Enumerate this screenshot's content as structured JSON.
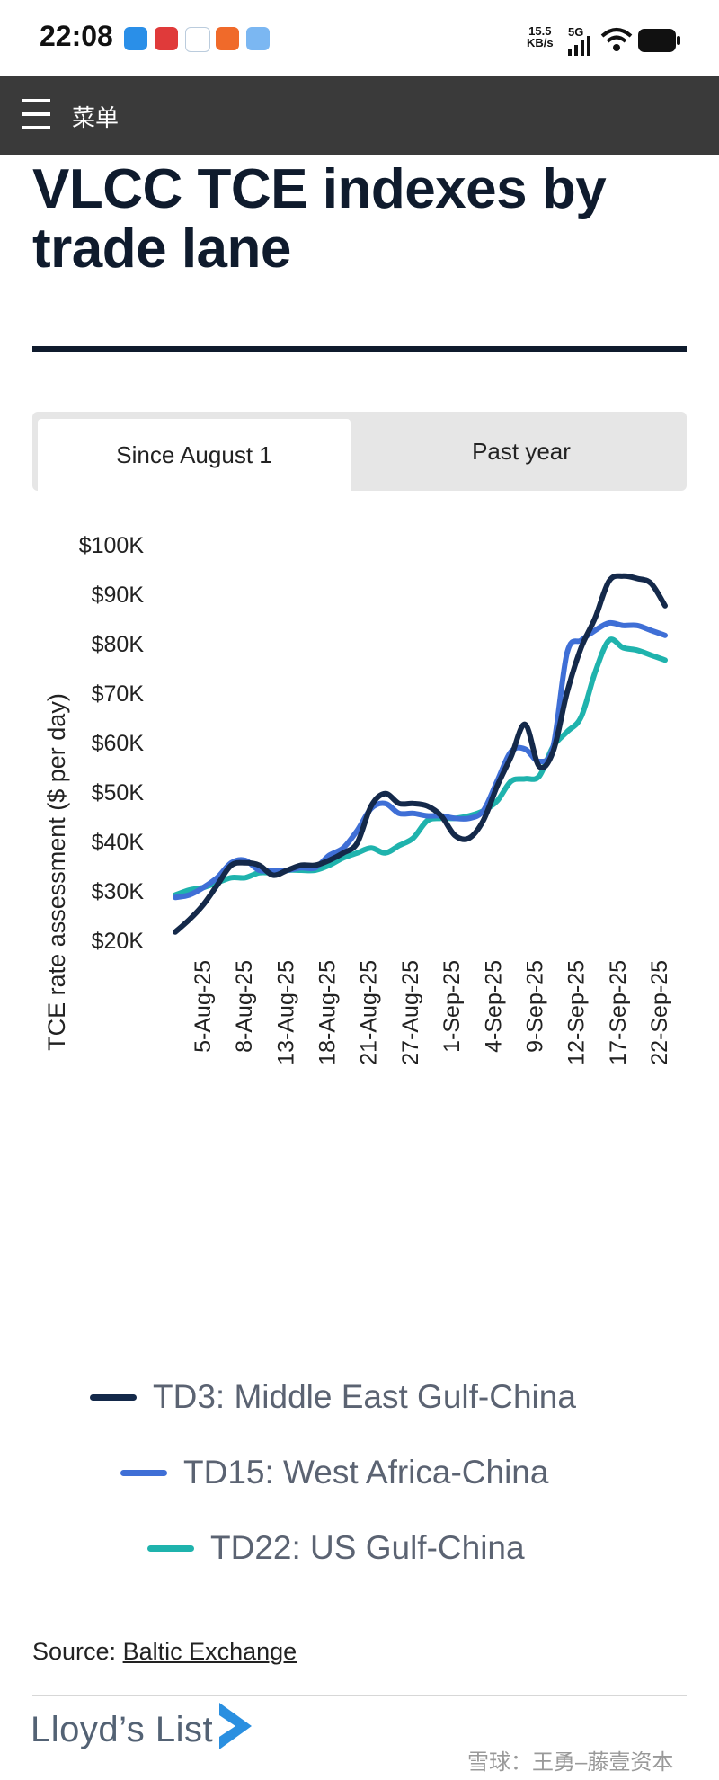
{
  "status_bar": {
    "time": "22:08",
    "speed": "15.5",
    "speed_unit": "KB/s",
    "network": "5G"
  },
  "header": {
    "menu_label": "菜单"
  },
  "article": {
    "title": "VLCC TCE indexes by trade lane"
  },
  "tabs": [
    {
      "label": "Since August 1",
      "active": true
    },
    {
      "label": "Past year",
      "active": false
    }
  ],
  "chart_data": {
    "type": "line",
    "title": "VLCC TCE indexes by trade lane",
    "ylabel": "TCE rate assessment ($ per day)",
    "xlabel": "",
    "ylim": [
      20000,
      100000
    ],
    "y_ticks": [
      {
        "value": 100000,
        "label": "$100K"
      },
      {
        "value": 90000,
        "label": "$90K"
      },
      {
        "value": 80000,
        "label": "$80K"
      },
      {
        "value": 70000,
        "label": "$70K"
      },
      {
        "value": 60000,
        "label": "$60K"
      },
      {
        "value": 50000,
        "label": "$50K"
      },
      {
        "value": 40000,
        "label": "$40K"
      },
      {
        "value": 30000,
        "label": "$30K"
      },
      {
        "value": 20000,
        "label": "$20K"
      }
    ],
    "x_tick_labels": [
      "5-Aug-25",
      "8-Aug-25",
      "13-Aug-25",
      "18-Aug-25",
      "21-Aug-25",
      "27-Aug-25",
      "1-Sep-25",
      "4-Sep-25",
      "9-Sep-25",
      "12-Sep-25",
      "17-Sep-25",
      "22-Sep-25"
    ],
    "grid": false,
    "legend_position": "bottom",
    "series": [
      {
        "name": "TD3: Middle East Gulf-China",
        "color": "#14294a",
        "values": [
          21500,
          24000,
          27000,
          31000,
          35000,
          35500,
          35000,
          33000,
          34000,
          35000,
          35000,
          36000,
          37500,
          39500,
          47000,
          49500,
          47500,
          47500,
          47000,
          45000,
          41000,
          40500,
          44000,
          51000,
          57000,
          63500,
          55000,
          58000,
          70000,
          79000,
          85000,
          92500,
          93500,
          93000,
          92000,
          87500
        ]
      },
      {
        "name": "TD15: West Africa-China",
        "color": "#3f6fd6",
        "values": [
          28500,
          29000,
          30500,
          32500,
          35500,
          36000,
          34000,
          34000,
          34000,
          34500,
          34500,
          37000,
          38500,
          42000,
          46500,
          47500,
          45500,
          45500,
          45000,
          45000,
          44500,
          44500,
          46000,
          52000,
          58000,
          58500,
          56000,
          59000,
          78000,
          80500,
          82500,
          84000,
          83500,
          83500,
          82500,
          81500
        ]
      },
      {
        "name": "TD22: US Gulf-China",
        "color": "#1fb3ad",
        "values": [
          29000,
          30000,
          30500,
          31500,
          32500,
          32500,
          33500,
          33500,
          34000,
          34000,
          34000,
          35000,
          36500,
          37500,
          38500,
          37500,
          39000,
          40500,
          44000,
          44500,
          44500,
          45000,
          46000,
          48000,
          52000,
          52500,
          53000,
          59000,
          62000,
          65000,
          74000,
          80500,
          79000,
          78500,
          77500,
          76500
        ]
      }
    ]
  },
  "source": {
    "label": "Source:",
    "link_text": "Baltic Exchange"
  },
  "footer": {
    "logo_text": "Lloyd’s List",
    "watermark": "雪球：王勇–藤壹资本"
  },
  "colors": {
    "navbar": "#3a3a3a",
    "title": "#0f1b2d",
    "accent_dark": "#14294a",
    "accent_blue": "#3f6fd6",
    "accent_teal": "#1fb3ad"
  }
}
